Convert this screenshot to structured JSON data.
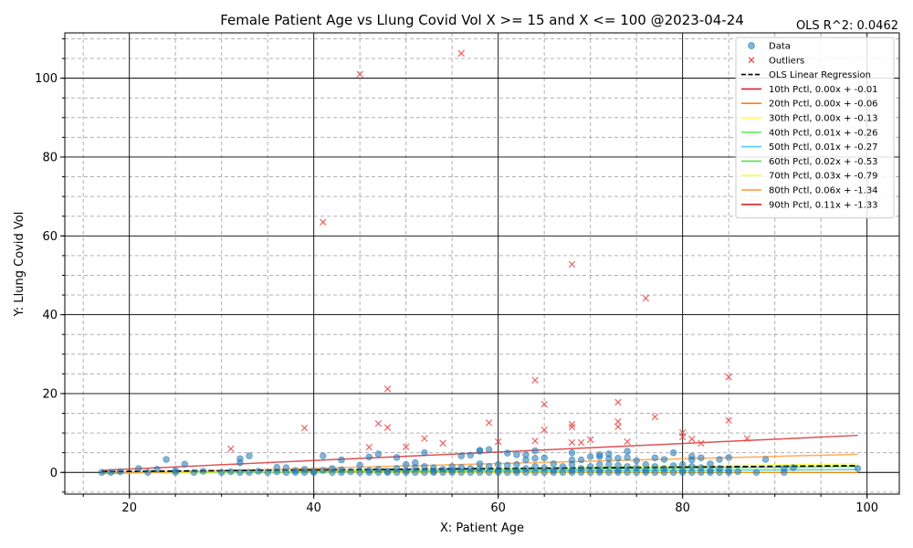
{
  "chart_data": {
    "type": "scatter",
    "title": "Female Patient Age vs Llung Covid Vol X >= 15 and X <=  100 @2023-04-24",
    "annotation": "OLS R^2: 0.0462",
    "xlabel": "X: Patient Age",
    "ylabel": "Y: Llung Covid Vol",
    "xlim": [
      13,
      103.5
    ],
    "ylim": [
      -5.5,
      111.5
    ],
    "x_ticks": [
      20,
      40,
      60,
      80,
      100
    ],
    "y_ticks": [
      0,
      20,
      40,
      60,
      80,
      100
    ],
    "x_minor_step": 5,
    "y_minor_step": 5,
    "grid": true,
    "legend_position": "top-right",
    "colors": {
      "data": "#1f77b4",
      "outliers": "#e84a4a",
      "ols": "#000000",
      "p10": "#d62728",
      "p20": "#ff7f0e",
      "p30": "#ffff33",
      "p40": "#66ee66",
      "p50": "#56c8f0",
      "p60": "#55dd55",
      "p70": "#ffff33",
      "p80": "#ff9933",
      "p90": "#d62728"
    },
    "legend": [
      {
        "label": "Data",
        "kind": "dot",
        "color": "#1f77b4"
      },
      {
        "label": "Outliers",
        "kind": "x",
        "color": "#e84a4a"
      },
      {
        "label": "OLS Linear Regression",
        "kind": "dash",
        "color": "#000000"
      },
      {
        "label": "10th Pctl, 0.00x + -0.01",
        "kind": "line",
        "color": "#d62728"
      },
      {
        "label": "20th Pctl, 0.00x + -0.06",
        "kind": "line",
        "color": "#ff7f0e"
      },
      {
        "label": "30th Pctl, 0.00x + -0.13",
        "kind": "line",
        "color": "#ffff33"
      },
      {
        "label": "40th Pctl, 0.01x + -0.26",
        "kind": "line",
        "color": "#66ee66"
      },
      {
        "label": "50th Pctl, 0.01x + -0.27",
        "kind": "line",
        "color": "#56c8f0"
      },
      {
        "label": "60th Pctl, 0.02x + -0.53",
        "kind": "line",
        "color": "#55dd55"
      },
      {
        "label": "70th Pctl, 0.03x + -0.79",
        "kind": "line",
        "color": "#ffff33"
      },
      {
        "label": "80th Pctl, 0.06x + -1.34",
        "kind": "line",
        "color": "#ff9933"
      },
      {
        "label": "90th Pctl, 0.11x + -1.33",
        "kind": "line",
        "color": "#d62728"
      }
    ],
    "lines": [
      {
        "name": "ols",
        "x": [
          17,
          99
        ],
        "y": [
          0.2,
          1.7
        ],
        "color": "#000000",
        "dashed": true
      },
      {
        "name": "p10",
        "x": [
          17,
          99
        ],
        "y": [
          -0.01,
          0.0
        ],
        "color": "#d62728",
        "dashed": false
      },
      {
        "name": "p20",
        "x": [
          17,
          99
        ],
        "y": [
          -0.06,
          0.1
        ],
        "color": "#ff7f0e",
        "dashed": false
      },
      {
        "name": "p30",
        "x": [
          17,
          99
        ],
        "y": [
          -0.13,
          0.15
        ],
        "color": "#ffff33",
        "dashed": false
      },
      {
        "name": "p40",
        "x": [
          17,
          99
        ],
        "y": [
          -0.09,
          0.73
        ],
        "color": "#66ee66",
        "dashed": false
      },
      {
        "name": "p50",
        "x": [
          17,
          99
        ],
        "y": [
          -0.1,
          0.72
        ],
        "color": "#56c8f0",
        "dashed": false
      },
      {
        "name": "p60",
        "x": [
          17,
          99
        ],
        "y": [
          -0.19,
          1.45
        ],
        "color": "#55dd55",
        "dashed": false
      },
      {
        "name": "p70",
        "x": [
          17,
          99
        ],
        "y": [
          -0.28,
          2.18
        ],
        "color": "#ffff33",
        "dashed": false
      },
      {
        "name": "p80",
        "x": [
          17,
          99
        ],
        "y": [
          -0.32,
          4.6
        ],
        "color": "#ff9933",
        "dashed": false
      },
      {
        "name": "p90",
        "x": [
          17,
          99
        ],
        "y": [
          0.54,
          9.4
        ],
        "color": "#d62728",
        "dashed": false
      }
    ],
    "data_points": [
      [
        17,
        0
      ],
      [
        18,
        0
      ],
      [
        19,
        0.2
      ],
      [
        21,
        1
      ],
      [
        22,
        0
      ],
      [
        23,
        0.8
      ],
      [
        24,
        3.3
      ],
      [
        25,
        0
      ],
      [
        25,
        0.5
      ],
      [
        26,
        2.1
      ],
      [
        27,
        0
      ],
      [
        28,
        0.3
      ],
      [
        30,
        0
      ],
      [
        31,
        0.2
      ],
      [
        32,
        0
      ],
      [
        32,
        2.5
      ],
      [
        32,
        3.5
      ],
      [
        33,
        4.2
      ],
      [
        33,
        0
      ],
      [
        34,
        0.3
      ],
      [
        35,
        0
      ],
      [
        36,
        1.3
      ],
      [
        36,
        0.2
      ],
      [
        37,
        1.2
      ],
      [
        37,
        0
      ],
      [
        38,
        0.5
      ],
      [
        38,
        0
      ],
      [
        39,
        0.8
      ],
      [
        39,
        0
      ],
      [
        40,
        0.3
      ],
      [
        40,
        0
      ],
      [
        41,
        4.2
      ],
      [
        41,
        0.5
      ],
      [
        42,
        1
      ],
      [
        42,
        0
      ],
      [
        43,
        3.2
      ],
      [
        43,
        0.7
      ],
      [
        43,
        0
      ],
      [
        44,
        0.2
      ],
      [
        45,
        1.8
      ],
      [
        45,
        0
      ],
      [
        46,
        3.9
      ],
      [
        46,
        0.5
      ],
      [
        46,
        0
      ],
      [
        47,
        4.7
      ],
      [
        47,
        0.8
      ],
      [
        47,
        0
      ],
      [
        48,
        0.3
      ],
      [
        48,
        0
      ],
      [
        49,
        3.8
      ],
      [
        49,
        1
      ],
      [
        49,
        0
      ],
      [
        50,
        2
      ],
      [
        50,
        0.5
      ],
      [
        50,
        0
      ],
      [
        51,
        2.5
      ],
      [
        51,
        1.2
      ],
      [
        51,
        0
      ],
      [
        52,
        5
      ],
      [
        52,
        1.5
      ],
      [
        52,
        0
      ],
      [
        53,
        1.2
      ],
      [
        53,
        0.3
      ],
      [
        53,
        0
      ],
      [
        54,
        0.8
      ],
      [
        54,
        0
      ],
      [
        55,
        1.5
      ],
      [
        55,
        0.5
      ],
      [
        55,
        0
      ],
      [
        56,
        4.2
      ],
      [
        56,
        1.3
      ],
      [
        56,
        0
      ],
      [
        57,
        4.4
      ],
      [
        57,
        1
      ],
      [
        57,
        0
      ],
      [
        58,
        5.6
      ],
      [
        58,
        5.4
      ],
      [
        58,
        2.2
      ],
      [
        58,
        1
      ],
      [
        58,
        0
      ],
      [
        59,
        5.8
      ],
      [
        59,
        1.5
      ],
      [
        59,
        0
      ],
      [
        60,
        2
      ],
      [
        60,
        0.5
      ],
      [
        60,
        0
      ],
      [
        61,
        4.9
      ],
      [
        61,
        1.8
      ],
      [
        61,
        0
      ],
      [
        62,
        4.5
      ],
      [
        62,
        2
      ],
      [
        62,
        0.5
      ],
      [
        62,
        0
      ],
      [
        63,
        4.5
      ],
      [
        63,
        3.2
      ],
      [
        63,
        1
      ],
      [
        63,
        0
      ],
      [
        64,
        5.5
      ],
      [
        64,
        3.6
      ],
      [
        64,
        1.5
      ],
      [
        64,
        0
      ],
      [
        65,
        3.7
      ],
      [
        65,
        1.2
      ],
      [
        65,
        0
      ],
      [
        66,
        2.2
      ],
      [
        66,
        0.5
      ],
      [
        66,
        0
      ],
      [
        67,
        1.5
      ],
      [
        67,
        0
      ],
      [
        68,
        5
      ],
      [
        68,
        3.2
      ],
      [
        68,
        2
      ],
      [
        68,
        0.5
      ],
      [
        68,
        0
      ],
      [
        69,
        3.2
      ],
      [
        69,
        1
      ],
      [
        69,
        0
      ],
      [
        70,
        4
      ],
      [
        70,
        1.5
      ],
      [
        70,
        0
      ],
      [
        71,
        4.5
      ],
      [
        71,
        4
      ],
      [
        71,
        2
      ],
      [
        71,
        0.5
      ],
      [
        71,
        0
      ],
      [
        72,
        4.7
      ],
      [
        72,
        3.5
      ],
      [
        72,
        2
      ],
      [
        72,
        0
      ],
      [
        73,
        3.6
      ],
      [
        73,
        1.8
      ],
      [
        73,
        0.5
      ],
      [
        73,
        0
      ],
      [
        74,
        5.4
      ],
      [
        74,
        3.8
      ],
      [
        74,
        1.5
      ],
      [
        74,
        0
      ],
      [
        75,
        3
      ],
      [
        75,
        1.2
      ],
      [
        75,
        0
      ],
      [
        76,
        2
      ],
      [
        76,
        0.5
      ],
      [
        76,
        0
      ],
      [
        77,
        3.7
      ],
      [
        77,
        1.5
      ],
      [
        77,
        0
      ],
      [
        78,
        3.3
      ],
      [
        78,
        1
      ],
      [
        78,
        0
      ],
      [
        79,
        5
      ],
      [
        79,
        1.7
      ],
      [
        79,
        0
      ],
      [
        80,
        2
      ],
      [
        80,
        0.5
      ],
      [
        80,
        0
      ],
      [
        81,
        4.1
      ],
      [
        81,
        3.2
      ],
      [
        81,
        1.5
      ],
      [
        81,
        0
      ],
      [
        82,
        3.7
      ],
      [
        82,
        1.2
      ],
      [
        82,
        0
      ],
      [
        83,
        2.2
      ],
      [
        83,
        0.5
      ],
      [
        83,
        0
      ],
      [
        84,
        3.3
      ],
      [
        84,
        1
      ],
      [
        84,
        0
      ],
      [
        85,
        3.8
      ],
      [
        85,
        0.5
      ],
      [
        85,
        0
      ],
      [
        86,
        0.2
      ],
      [
        88,
        0
      ],
      [
        89,
        3.3
      ],
      [
        91,
        1
      ],
      [
        91,
        0
      ],
      [
        92,
        1.2
      ],
      [
        99,
        1
      ]
    ],
    "outliers": [
      [
        31,
        6
      ],
      [
        39,
        11.3
      ],
      [
        41,
        63.5
      ],
      [
        45,
        101
      ],
      [
        46,
        6.4
      ],
      [
        47,
        12.4
      ],
      [
        48,
        11.4
      ],
      [
        48,
        21.2
      ],
      [
        50,
        6.5
      ],
      [
        52,
        8.6
      ],
      [
        54,
        7.4
      ],
      [
        56,
        106.3
      ],
      [
        59,
        12.6
      ],
      [
        60,
        7.8
      ],
      [
        64,
        8
      ],
      [
        64,
        23.4
      ],
      [
        65,
        17.3
      ],
      [
        65,
        10.8
      ],
      [
        68,
        11.5
      ],
      [
        68,
        12.2
      ],
      [
        68,
        7.6
      ],
      [
        68,
        52.8
      ],
      [
        69,
        7.6
      ],
      [
        70,
        8.3
      ],
      [
        73,
        17.8
      ],
      [
        73,
        12.9
      ],
      [
        73,
        11.6
      ],
      [
        74,
        7.8
      ],
      [
        76,
        44.2
      ],
      [
        77,
        14.1
      ],
      [
        80,
        10.1
      ],
      [
        80,
        9
      ],
      [
        81,
        8.5
      ],
      [
        82,
        7.4
      ],
      [
        85,
        24.2
      ],
      [
        85,
        13.2
      ],
      [
        87,
        8.6
      ]
    ]
  }
}
